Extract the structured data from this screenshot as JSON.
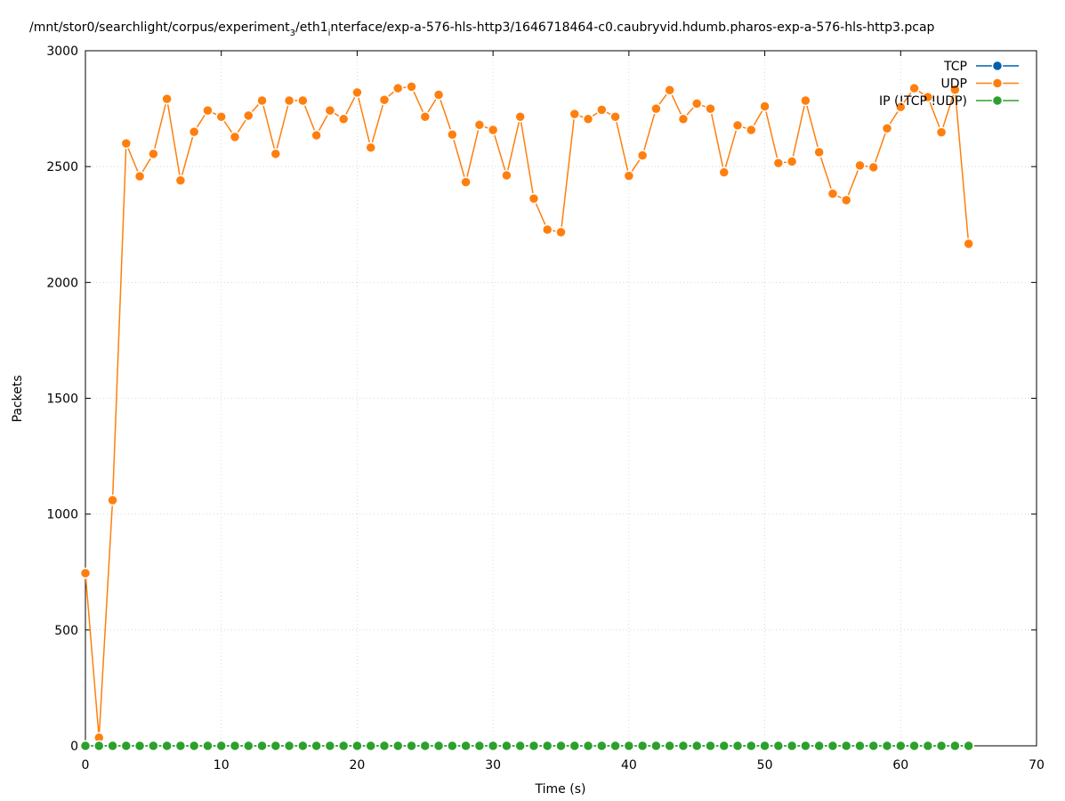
{
  "chart_data": {
    "type": "line",
    "title": "/mnt/stor0/searchlight/corpus/experiment",
    "title_sub": "3",
    "title_mid": "/eth1",
    "title_sub2": "i",
    "title_end": "nterface/exp-a-576-hls-http3/1646718464-c0.caubryvid.hdumb.pharos-exp-a-576-hls-http3.pcap",
    "xlabel": "Time (s)",
    "ylabel": "Packets",
    "xlim": [
      0,
      70
    ],
    "ylim": [
      0,
      3000
    ],
    "x_ticks": [
      0,
      10,
      20,
      30,
      40,
      50,
      60,
      70
    ],
    "y_ticks": [
      0,
      500,
      1000,
      1500,
      2000,
      2500,
      3000
    ],
    "grid": true,
    "legend_position": "top-right",
    "x": [
      0,
      1,
      2,
      3,
      4,
      5,
      6,
      7,
      8,
      9,
      10,
      11,
      12,
      13,
      14,
      15,
      16,
      17,
      18,
      19,
      20,
      21,
      22,
      23,
      24,
      25,
      26,
      27,
      28,
      29,
      30,
      31,
      32,
      33,
      34,
      35,
      36,
      37,
      38,
      39,
      40,
      41,
      42,
      43,
      44,
      45,
      46,
      47,
      48,
      49,
      50,
      51,
      52,
      53,
      54,
      55,
      56,
      57,
      58,
      59,
      60,
      61,
      62,
      63,
      64,
      65
    ],
    "series": [
      {
        "name": "TCP",
        "color": "#0060ad",
        "values": [
          0,
          0,
          0,
          0,
          0,
          0,
          0,
          0,
          0,
          0,
          0,
          0,
          0,
          0,
          0,
          0,
          0,
          0,
          0,
          0,
          0,
          0,
          0,
          0,
          0,
          0,
          0,
          0,
          0,
          0,
          0,
          0,
          0,
          0,
          0,
          0,
          0,
          0,
          0,
          0,
          0,
          0,
          0,
          0,
          0,
          0,
          0,
          0,
          0,
          0,
          0,
          0,
          0,
          0,
          0,
          0,
          0,
          0,
          0,
          0,
          0,
          0,
          0,
          0,
          0,
          0
        ]
      },
      {
        "name": "UDP",
        "color": "#ff7f0e",
        "values": [
          745,
          35,
          1060,
          2600,
          2458,
          2555,
          2792,
          2440,
          2650,
          2742,
          2715,
          2628,
          2720,
          2785,
          2555,
          2785,
          2785,
          2635,
          2742,
          2705,
          2820,
          2582,
          2788,
          2838,
          2845,
          2715,
          2810,
          2638,
          2433,
          2680,
          2658,
          2462,
          2715,
          2362,
          2228,
          2217,
          2727,
          2705,
          2745,
          2715,
          2460,
          2548,
          2750,
          2830,
          2705,
          2772,
          2750,
          2475,
          2678,
          2658,
          2760,
          2515,
          2522,
          2785,
          2562,
          2383,
          2355,
          2505,
          2497,
          2665,
          2757,
          2838,
          2800,
          2648,
          2832,
          2167
        ]
      },
      {
        "name": "IP (!TCP !UDP)",
        "color": "#2ca02c",
        "values": [
          0,
          0,
          0,
          0,
          0,
          0,
          0,
          0,
          0,
          0,
          0,
          0,
          0,
          0,
          0,
          0,
          0,
          0,
          0,
          0,
          0,
          0,
          0,
          0,
          0,
          0,
          0,
          0,
          0,
          0,
          0,
          0,
          0,
          0,
          0,
          0,
          0,
          0,
          0,
          0,
          0,
          0,
          0,
          0,
          0,
          0,
          0,
          0,
          0,
          0,
          0,
          0,
          0,
          0,
          0,
          0,
          0,
          0,
          0,
          0,
          0,
          0,
          0,
          0,
          0,
          0
        ]
      }
    ]
  }
}
